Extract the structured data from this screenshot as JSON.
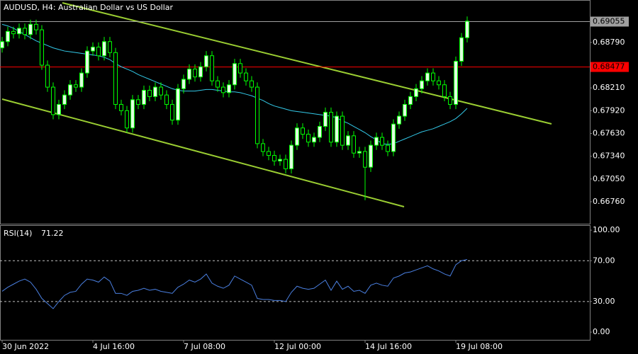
{
  "chart_data": {
    "type": "candlestick",
    "title": "AUDUSD, H4:  Australian Dollar vs US Dollar",
    "categories": [
      "30 Jun 2022",
      null,
      null,
      null,
      null,
      null,
      null,
      null,
      null,
      null,
      null,
      null,
      null,
      null,
      null,
      null,
      "4 Jul 16:00",
      null,
      null,
      null,
      null,
      null,
      null,
      null,
      null,
      null,
      null,
      null,
      null,
      null,
      null,
      null,
      "7 Jul 08:00",
      null,
      null,
      null,
      null,
      null,
      null,
      null,
      null,
      null,
      null,
      null,
      null,
      null,
      null,
      null,
      "12 Jul 00:00",
      null,
      null,
      null,
      null,
      null,
      null,
      null,
      null,
      null,
      null,
      null,
      null,
      null,
      null,
      null,
      "14 Jul 16:00",
      null,
      null,
      null,
      null,
      null,
      null,
      null,
      null,
      null,
      null,
      null,
      null,
      null,
      null,
      null,
      "19 Jul 08:00",
      null,
      null
    ],
    "open": [
      0.6872,
      0.688,
      0.6893,
      0.689,
      0.6897,
      0.6889,
      0.6902,
      0.6895,
      0.685,
      0.6822,
      0.6787,
      0.68,
      0.6812,
      0.6825,
      0.6822,
      0.684,
      0.6868,
      0.6873,
      0.6862,
      0.688,
      0.6866,
      0.68,
      0.6792,
      0.677,
      0.6806,
      0.68,
      0.6818,
      0.681,
      0.6822,
      0.6812,
      0.68,
      0.678,
      0.682,
      0.6832,
      0.6845,
      0.6835,
      0.6848,
      0.6862,
      0.683,
      0.6822,
      0.6815,
      0.6825,
      0.6852,
      0.684,
      0.683,
      0.6822,
      0.675,
      0.674,
      0.6735,
      0.6728,
      0.673,
      0.6718,
      0.6748,
      0.677,
      0.6762,
      0.6752,
      0.6758,
      0.6772,
      0.679,
      0.6752,
      0.6785,
      0.6748,
      0.676,
      0.6738,
      0.674,
      0.672,
      0.6748,
      0.6758,
      0.6748,
      0.674,
      0.6775,
      0.6785,
      0.68,
      0.681,
      0.682,
      0.683,
      0.684,
      0.683,
      0.6825,
      0.681,
      0.68,
      0.6855,
      0.6885
    ],
    "high": [
      0.6886,
      0.6899,
      0.6899,
      0.6903,
      0.6903,
      0.6908,
      0.6908,
      0.6901,
      0.6856,
      0.6828,
      0.6806,
      0.6818,
      0.6831,
      0.6831,
      0.6846,
      0.6874,
      0.6879,
      0.6879,
      0.6886,
      0.6886,
      0.6872,
      0.6806,
      0.6798,
      0.6812,
      0.6812,
      0.6824,
      0.6824,
      0.6828,
      0.6828,
      0.6818,
      0.6806,
      0.6826,
      0.6838,
      0.6851,
      0.6851,
      0.6854,
      0.6868,
      0.6868,
      0.6836,
      0.6828,
      0.6831,
      0.6858,
      0.6858,
      0.6846,
      0.6836,
      0.6828,
      0.6756,
      0.6746,
      0.6741,
      0.6736,
      0.6736,
      0.6754,
      0.6776,
      0.6776,
      0.6768,
      0.6764,
      0.6778,
      0.6796,
      0.6796,
      0.6791,
      0.6791,
      0.6766,
      0.6766,
      0.6746,
      0.6746,
      0.6754,
      0.6764,
      0.6764,
      0.6754,
      0.6781,
      0.6791,
      0.6806,
      0.6816,
      0.6826,
      0.6836,
      0.6846,
      0.6846,
      0.6836,
      0.6831,
      0.6816,
      0.6861,
      0.6891,
      0.6912
    ],
    "low": [
      0.6866,
      0.6874,
      0.6884,
      0.6884,
      0.6883,
      0.6883,
      0.6889,
      0.6844,
      0.6816,
      0.6781,
      0.6781,
      0.6794,
      0.6806,
      0.6816,
      0.6816,
      0.6834,
      0.6862,
      0.6856,
      0.6856,
      0.686,
      0.6794,
      0.6786,
      0.6764,
      0.6764,
      0.6794,
      0.6794,
      0.6804,
      0.6804,
      0.6806,
      0.6794,
      0.6774,
      0.6774,
      0.6814,
      0.6826,
      0.6829,
      0.6829,
      0.6842,
      0.6824,
      0.6816,
      0.6809,
      0.6809,
      0.6819,
      0.6834,
      0.6824,
      0.6816,
      0.6744,
      0.6734,
      0.6729,
      0.6722,
      0.6722,
      0.6712,
      0.6712,
      0.6742,
      0.6756,
      0.6746,
      0.6746,
      0.6752,
      0.6766,
      0.6746,
      0.6746,
      0.6742,
      0.6742,
      0.6732,
      0.6732,
      0.6678,
      0.6714,
      0.6742,
      0.6742,
      0.6734,
      0.6734,
      0.6769,
      0.6779,
      0.6794,
      0.6804,
      0.6814,
      0.6824,
      0.6824,
      0.6819,
      0.6804,
      0.6794,
      0.6794,
      0.6849,
      0.6879
    ],
    "close": [
      0.688,
      0.6893,
      0.689,
      0.6897,
      0.6889,
      0.6902,
      0.6895,
      0.685,
      0.6822,
      0.6787,
      0.68,
      0.6812,
      0.6825,
      0.6822,
      0.684,
      0.6868,
      0.6873,
      0.6862,
      0.688,
      0.6866,
      0.68,
      0.6792,
      0.677,
      0.6806,
      0.68,
      0.6818,
      0.681,
      0.6822,
      0.6812,
      0.68,
      0.678,
      0.682,
      0.6832,
      0.6845,
      0.6835,
      0.6848,
      0.6862,
      0.683,
      0.6822,
      0.6815,
      0.6825,
      0.6852,
      0.684,
      0.683,
      0.6822,
      0.675,
      0.674,
      0.6735,
      0.6728,
      0.673,
      0.6718,
      0.6748,
      0.677,
      0.6762,
      0.6752,
      0.6758,
      0.6772,
      0.679,
      0.6752,
      0.6785,
      0.6748,
      0.676,
      0.6738,
      0.674,
      0.672,
      0.6748,
      0.6758,
      0.6748,
      0.674,
      0.6775,
      0.6785,
      0.68,
      0.681,
      0.682,
      0.683,
      0.684,
      0.683,
      0.6825,
      0.681,
      0.68,
      0.6855,
      0.6885,
      0.6906
    ],
    "candle_color": "#00ff00",
    "bull_fill": "#e0ffe0",
    "bear_fill": "#000000",
    "ma": {
      "color": "#33c9e8",
      "values": [
        0.6902,
        0.69,
        0.6897,
        0.6893,
        0.6889,
        0.6885,
        0.6881,
        0.6878,
        0.6875,
        0.6872,
        0.687,
        0.6868,
        0.6867,
        0.6866,
        0.6865,
        0.6864,
        0.6863,
        0.6862,
        0.686,
        0.6857,
        0.6852,
        0.6848,
        0.6845,
        0.6842,
        0.6838,
        0.6835,
        0.6832,
        0.6829,
        0.6826,
        0.6823,
        0.682,
        0.6818,
        0.6817,
        0.6817,
        0.6817,
        0.6818,
        0.6819,
        0.6819,
        0.6818,
        0.6817,
        0.6816,
        0.6816,
        0.6815,
        0.6813,
        0.6811,
        0.6808,
        0.6805,
        0.6801,
        0.6798,
        0.6796,
        0.6794,
        0.6792,
        0.6791,
        0.679,
        0.6789,
        0.6788,
        0.6787,
        0.6786,
        0.6785,
        0.6783,
        0.6779,
        0.6776,
        0.6772,
        0.6768,
        0.6764,
        0.6759,
        0.6755,
        0.675,
        0.6749,
        0.675,
        0.6753,
        0.6756,
        0.6759,
        0.6762,
        0.6765,
        0.6767,
        0.6769,
        0.6772,
        0.6775,
        0.6778,
        0.6782,
        0.6788,
        0.6795
      ]
    },
    "ylim": [
      0.6648,
      0.6933
    ],
    "yticks": [
      {
        "value": 0.6879,
        "label": "0.68790"
      },
      {
        "value": 0.6821,
        "label": "0.68210"
      },
      {
        "value": 0.6792,
        "label": "0.67920"
      },
      {
        "value": 0.6763,
        "label": "0.67630"
      },
      {
        "value": 0.6734,
        "label": "0.67340"
      },
      {
        "value": 0.6705,
        "label": "0.67050"
      },
      {
        "value": 0.6676,
        "label": "0.66760"
      }
    ],
    "price_line": 0.69055,
    "price_line_color": "#a0a0a0",
    "level_line": 0.68477,
    "level_line_color": "#ff0000",
    "rsi": {
      "name": "RSI(14)",
      "color": "#4a7fe0",
      "values": [
        40,
        44,
        47,
        50,
        52,
        49,
        42,
        33,
        28,
        23,
        30,
        36,
        39,
        40,
        47,
        52,
        51,
        49,
        54,
        50,
        38,
        38,
        36,
        40,
        41,
        43,
        41,
        42,
        40,
        39,
        38,
        44,
        47,
        51,
        49,
        52,
        57,
        48,
        45,
        43,
        46,
        55,
        52,
        49,
        46,
        33,
        32,
        32,
        31,
        31,
        30,
        39,
        45,
        43,
        42,
        43,
        47,
        51,
        41,
        50,
        42,
        45,
        40,
        41,
        38,
        46,
        48,
        46,
        45,
        53,
        55,
        58,
        59,
        61,
        63,
        65,
        62,
        60,
        57,
        55,
        66,
        70,
        71.22
      ],
      "ylim": [
        -7.6,
        104.9
      ],
      "yticks": [
        {
          "value": 100,
          "label": "100.00"
        },
        {
          "value": 70,
          "label": "70.00"
        },
        {
          "value": 30,
          "label": "30.00"
        },
        {
          "value": 0,
          "label": "0.00"
        }
      ],
      "levels": [
        70,
        30
      ]
    }
  }
}
